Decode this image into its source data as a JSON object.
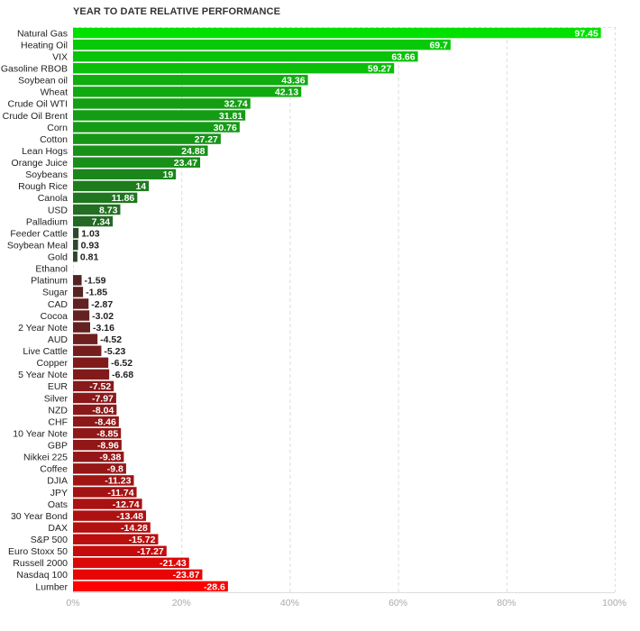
{
  "chart_data": {
    "type": "bar",
    "orientation": "horizontal",
    "title": "YEAR TO DATE RELATIVE PERFORMANCE",
    "categories": [
      "Natural Gas",
      "Heating Oil",
      "VIX",
      "Gasoline RBOB",
      "Soybean oil",
      "Wheat",
      "Crude Oil WTI",
      "Crude Oil Brent",
      "Corn",
      "Cotton",
      "Lean Hogs",
      "Orange Juice",
      "Soybeans",
      "Rough Rice",
      "Canola",
      "USD",
      "Palladium",
      "Feeder Cattle",
      "Soybean Meal",
      "Gold",
      "Ethanol",
      "Platinum",
      "Sugar",
      "CAD",
      "Cocoa",
      "2 Year Note",
      "AUD",
      "Live Cattle",
      "Copper",
      "5 Year Note",
      "EUR",
      "Silver",
      "NZD",
      "CHF",
      "10 Year Note",
      "GBP",
      "Nikkei 225",
      "Coffee",
      "DJIA",
      "JPY",
      "Oats",
      "30 Year Bond",
      "DAX",
      "S&P 500",
      "Euro Stoxx 50",
      "Russell 2000",
      "Nasdaq 100",
      "Lumber"
    ],
    "values": [
      97.45,
      69.7,
      63.66,
      59.27,
      43.36,
      42.13,
      32.74,
      31.81,
      30.76,
      27.27,
      24.88,
      23.47,
      19,
      14,
      11.86,
      8.73,
      7.34,
      1.03,
      0.93,
      0.81,
      null,
      -1.59,
      -1.85,
      -2.87,
      -3.02,
      -3.16,
      -4.52,
      -5.23,
      -6.52,
      -6.68,
      -7.52,
      -7.97,
      -8.04,
      -8.46,
      -8.85,
      -8.96,
      -9.38,
      -9.8,
      -11.23,
      -11.74,
      -12.74,
      -13.48,
      -14.28,
      -15.72,
      -17.27,
      -21.43,
      -23.87,
      -28.6
    ],
    "value_labels": [
      "97.45",
      "69.7",
      "63.66",
      "59.27",
      "43.36",
      "42.13",
      "32.74",
      "31.81",
      "30.76",
      "27.27",
      "24.88",
      "23.47",
      "19",
      "14",
      "11.86",
      "8.73",
      "7.34",
      "1.03",
      "0.93",
      "0.81",
      "",
      "-1.59",
      "-1.85",
      "-2.87",
      "-3.02",
      "-3.16",
      "-4.52",
      "-5.23",
      "-6.52",
      "-6.68",
      "-7.52",
      "-7.97",
      "-8.04",
      "-8.46",
      "-8.85",
      "-8.96",
      "-9.38",
      "-9.8",
      "-11.23",
      "-11.74",
      "-12.74",
      "-13.48",
      "-14.28",
      "-15.72",
      "-17.27",
      "-21.43",
      "-23.87",
      "-28.6"
    ],
    "bar_extent_basis": "absolute value",
    "xlim": [
      0,
      100
    ],
    "x_ticks": [
      "0%",
      "20%",
      "40%",
      "60%",
      "80%",
      "100%"
    ],
    "grid": "vertical dashed",
    "colors": {
      "positive_max": "#00e100",
      "positive_min": "#333333",
      "negative_min": "#3a2a2a",
      "negative_max": "#ff0000",
      "grid": "#dddddd",
      "tick_text": "#aaaaaa"
    }
  }
}
